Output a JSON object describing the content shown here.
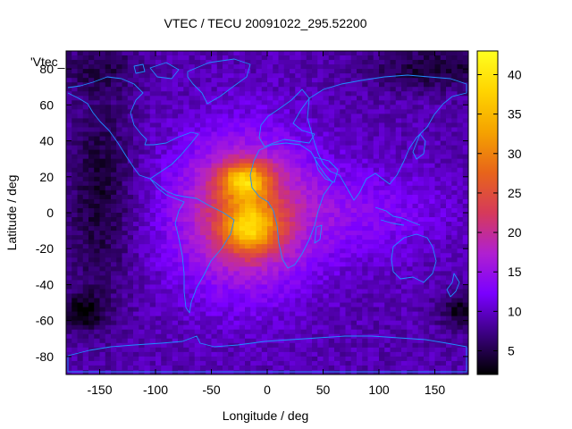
{
  "chart_data": {
    "type": "heatmap",
    "title": "VTEC / TECU 20091022_295.52200",
    "xlabel": "Longitude / deg",
    "ylabel": "Latitude / deg",
    "key_label": "'Vtec_",
    "xlim": [
      -180,
      180
    ],
    "ylim": [
      -90,
      90
    ],
    "x_ticks": [
      -150,
      -100,
      -50,
      0,
      50,
      100,
      150
    ],
    "y_ticks": [
      -80,
      -60,
      -40,
      -20,
      0,
      20,
      40,
      60,
      80
    ],
    "colorbar": {
      "range": [
        2,
        43
      ],
      "ticks": [
        5,
        10,
        15,
        20,
        25,
        30,
        35,
        40
      ],
      "palette": [
        "#000000",
        "#3b0080",
        "#7a00ff",
        "#b020d0",
        "#d63a5a",
        "#e8651a",
        "#f5a300",
        "#ffd400",
        "#ffff20"
      ]
    },
    "grid": false,
    "features": {
      "ionization_crest_north": {
        "lon": -20,
        "lat": 18,
        "vtec": 43
      },
      "ionization_crest_south": {
        "lon": -15,
        "lat": -8,
        "vtec": 42
      },
      "background_vtec_min": 2,
      "overlay": "coastlines",
      "coastline_color": "#1e90ff"
    }
  }
}
